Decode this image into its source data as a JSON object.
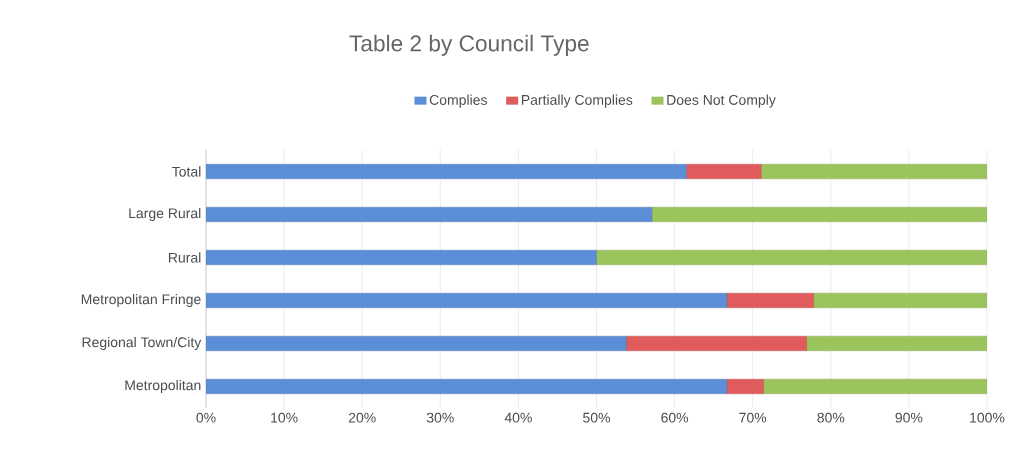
{
  "chart_data": {
    "type": "bar",
    "orientation": "horizontal",
    "stacked": true,
    "title": "Table 2   by Council Type",
    "categories": [
      "Total",
      "Large Rural",
      "Rural",
      "Metropolitan Fringe",
      "Regional Town/City",
      "Metropolitan"
    ],
    "series": [
      {
        "name": "Complies",
        "color": "#5b8ed6",
        "values": [
          61.5,
          57.1,
          50,
          66.7,
          53.8,
          66.7
        ]
      },
      {
        "name": "Partially Complies",
        "color": "#e05c5c",
        "values": [
          9.6,
          0,
          0,
          11.1,
          23.1,
          4.7
        ]
      },
      {
        "name": "Does Not Comply",
        "color": "#9cc45c",
        "values": [
          28.9,
          42.9,
          50,
          22.2,
          23.1,
          28.6
        ]
      }
    ],
    "xlim": [
      0,
      100
    ],
    "xticks": [
      {
        "value": 0,
        "label": "0%"
      },
      {
        "value": 10,
        "label": "10%"
      },
      {
        "value": 20,
        "label": "20%"
      },
      {
        "value": 30,
        "label": "30%"
      },
      {
        "value": 40,
        "label": "40%"
      },
      {
        "value": 50,
        "label": "50%"
      },
      {
        "value": 60,
        "label": "60%"
      },
      {
        "value": 70,
        "label": "70%"
      },
      {
        "value": 80,
        "label": "80%"
      },
      {
        "value": 90,
        "label": "90%"
      },
      {
        "value": 100,
        "label": "100%"
      }
    ],
    "grid": "x",
    "legend": "top"
  }
}
